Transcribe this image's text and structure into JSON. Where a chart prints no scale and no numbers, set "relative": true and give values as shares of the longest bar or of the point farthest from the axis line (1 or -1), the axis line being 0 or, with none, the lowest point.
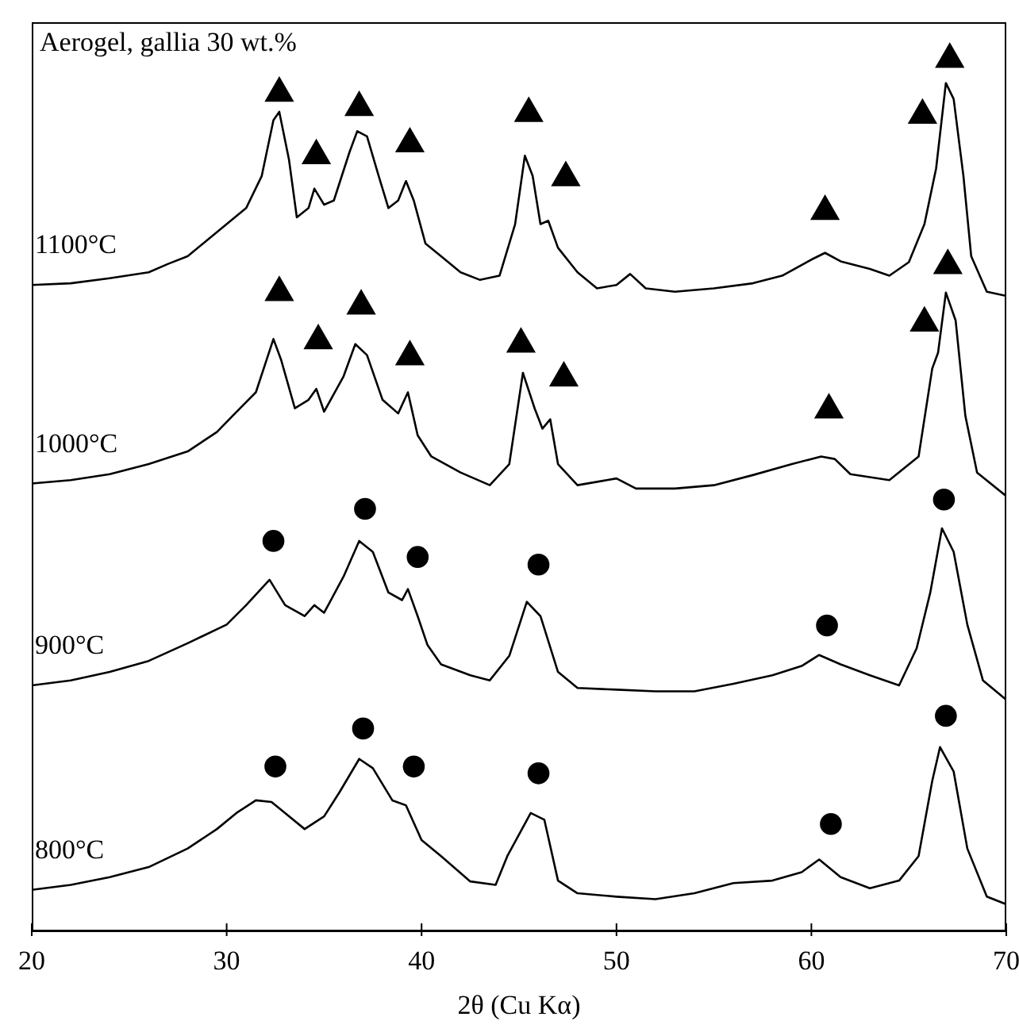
{
  "chart_data": {
    "type": "line",
    "title": "Aerogel, gallia 30 wt.%",
    "xlabel": "2θ (Cu Kα)",
    "relative": true,
    "tick_labels": "x",
    "grid": false,
    "xlim": [
      20,
      70
    ],
    "xticks": [
      20,
      30,
      40,
      50,
      60,
      70
    ],
    "series": [
      {
        "name": "1100°C",
        "color": "#000000",
        "x": [
          20,
          22,
          24,
          26,
          27,
          28,
          29,
          30,
          31,
          31.8,
          32.4,
          32.7,
          33.2,
          33.6,
          34.2,
          34.5,
          35,
          35.5,
          36.3,
          36.7,
          37.2,
          37.8,
          38.3,
          38.8,
          39.2,
          39.6,
          40.2,
          41,
          42,
          43,
          44,
          44.8,
          45.3,
          45.7,
          46.1,
          46.5,
          47,
          48,
          49,
          50,
          50.7,
          51.5,
          53,
          55,
          57,
          58.5,
          60,
          60.7,
          61.5,
          63,
          64,
          65,
          65.8,
          66.4,
          66.9,
          67.3,
          67.8,
          68.2,
          69,
          70
        ],
        "values": [
          0.733,
          0.735,
          0.741,
          0.748,
          0.758,
          0.767,
          0.786,
          0.805,
          0.824,
          0.862,
          0.928,
          0.938,
          0.881,
          0.813,
          0.824,
          0.847,
          0.828,
          0.833,
          0.89,
          0.915,
          0.909,
          0.862,
          0.824,
          0.833,
          0.856,
          0.833,
          0.782,
          0.767,
          0.748,
          0.739,
          0.744,
          0.805,
          0.886,
          0.862,
          0.805,
          0.809,
          0.777,
          0.748,
          0.729,
          0.733,
          0.746,
          0.729,
          0.725,
          0.729,
          0.735,
          0.744,
          0.763,
          0.771,
          0.761,
          0.752,
          0.744,
          0.76,
          0.805,
          0.871,
          0.972,
          0.953,
          0.862,
          0.767,
          0.725,
          0.72
        ]
      },
      {
        "name": "1000°C",
        "color": "#000000",
        "x": [
          20,
          22,
          24,
          26,
          28,
          29.5,
          30.3,
          31.5,
          32.4,
          32.8,
          33.5,
          34.2,
          34.6,
          35,
          36,
          36.6,
          37.2,
          38,
          38.8,
          39.3,
          39.8,
          40.5,
          42,
          43.5,
          44.5,
          45.2,
          45.8,
          46.2,
          46.6,
          47,
          48,
          49.5,
          50,
          51,
          53,
          55,
          57,
          59,
          60.5,
          61.2,
          62,
          64,
          65.5,
          66.2,
          66.5,
          66.9,
          67.4,
          67.9,
          68.5,
          70
        ],
        "values": [
          0.498,
          0.502,
          0.509,
          0.521,
          0.536,
          0.559,
          0.578,
          0.606,
          0.669,
          0.644,
          0.587,
          0.597,
          0.61,
          0.583,
          0.625,
          0.663,
          0.65,
          0.597,
          0.581,
          0.606,
          0.555,
          0.53,
          0.511,
          0.496,
          0.521,
          0.629,
          0.587,
          0.563,
          0.574,
          0.521,
          0.496,
          0.502,
          0.504,
          0.492,
          0.492,
          0.496,
          0.508,
          0.521,
          0.53,
          0.527,
          0.509,
          0.502,
          0.53,
          0.634,
          0.653,
          0.724,
          0.691,
          0.578,
          0.511,
          0.483
        ]
      },
      {
        "name": "900°C",
        "color": "#000000",
        "x": [
          20,
          22,
          24,
          26,
          28,
          30,
          31,
          32.2,
          33,
          34,
          34.5,
          35,
          36,
          36.8,
          37.5,
          38.3,
          39,
          39.3,
          39.8,
          40.3,
          41,
          42.5,
          43.5,
          44.5,
          45.4,
          46.1,
          47,
          48,
          50,
          52,
          54,
          56,
          58,
          59.5,
          60.4,
          61.5,
          63,
          64.5,
          65.4,
          66.1,
          66.7,
          67.3,
          68,
          68.8,
          70
        ],
        "values": [
          0.259,
          0.265,
          0.275,
          0.288,
          0.309,
          0.331,
          0.354,
          0.384,
          0.354,
          0.341,
          0.354,
          0.345,
          0.388,
          0.43,
          0.417,
          0.369,
          0.36,
          0.373,
          0.341,
          0.307,
          0.284,
          0.271,
          0.265,
          0.294,
          0.358,
          0.341,
          0.275,
          0.256,
          0.254,
          0.252,
          0.252,
          0.261,
          0.271,
          0.282,
          0.295,
          0.284,
          0.271,
          0.259,
          0.303,
          0.369,
          0.445,
          0.417,
          0.331,
          0.265,
          0.242
        ]
      },
      {
        "name": "800°C",
        "color": "#000000",
        "x": [
          20,
          22,
          24,
          26,
          28,
          29.5,
          30.5,
          31.5,
          32.3,
          33,
          34,
          35,
          35.8,
          36.8,
          37.5,
          38.5,
          39.2,
          40,
          41,
          42.5,
          43.8,
          44.4,
          45.6,
          46.3,
          47,
          48,
          50,
          52,
          54,
          56,
          58,
          59.5,
          60.4,
          61.5,
          63,
          64.5,
          65.5,
          66.2,
          66.6,
          67.3,
          68,
          69,
          70
        ],
        "values": [
          0.017,
          0.023,
          0.032,
          0.044,
          0.066,
          0.089,
          0.108,
          0.123,
          0.121,
          0.108,
          0.089,
          0.104,
          0.133,
          0.172,
          0.161,
          0.123,
          0.117,
          0.076,
          0.057,
          0.027,
          0.023,
          0.057,
          0.108,
          0.1,
          0.028,
          0.013,
          0.009,
          0.006,
          0.013,
          0.025,
          0.028,
          0.038,
          0.053,
          0.032,
          0.019,
          0.028,
          0.057,
          0.146,
          0.186,
          0.157,
          0.066,
          0.009,
          0
        ]
      },
      {
        "type": "scatter",
        "marker": "triangle",
        "color": "#000000",
        "x": [
          32.7,
          34.6,
          36.8,
          39.4,
          45.5,
          47.4,
          60.7,
          65.7,
          67.1
        ],
        "values": [
          0.96,
          0.886,
          0.943,
          0.9,
          0.936,
          0.86,
          0.82,
          0.934,
          1.0
        ]
      },
      {
        "type": "scatter",
        "marker": "triangle",
        "color": "#000000",
        "x": [
          32.7,
          34.7,
          36.9,
          39.4,
          45.1,
          47.3,
          60.9,
          65.8,
          67.0
        ],
        "values": [
          0.724,
          0.667,
          0.708,
          0.648,
          0.663,
          0.623,
          0.585,
          0.688,
          0.756
        ]
      },
      {
        "type": "scatter",
        "marker": "circle",
        "color": "#000000",
        "x": [
          32.4,
          37.1,
          39.8,
          46.0,
          60.8,
          66.8
        ],
        "values": [
          0.43,
          0.468,
          0.411,
          0.402,
          0.33,
          0.479
        ]
      },
      {
        "type": "scatter",
        "marker": "circle",
        "color": "#000000",
        "x": [
          32.5,
          37.0,
          39.6,
          46.0,
          61.0,
          66.9
        ],
        "values": [
          0.163,
          0.208,
          0.163,
          0.155,
          0.095,
          0.223
        ]
      }
    ]
  }
}
